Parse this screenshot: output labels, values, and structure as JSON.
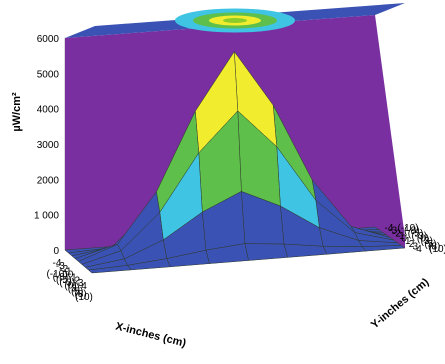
{
  "chart_data": {
    "type": "surface3d",
    "title": "",
    "zlabel": "µW/cm²",
    "xlabel": "X-inches (cm)",
    "ylabel": "Y-inches (cm)",
    "zlim": [
      0,
      6000
    ],
    "z_ticks": [
      "6000",
      "5000",
      "4000",
      "3000",
      "2000",
      "1 000",
      "0"
    ],
    "x_ticks": [
      {
        "in": "-4",
        "cm": "(-10)"
      },
      {
        "in": "-3",
        "cm": "(-8)"
      },
      {
        "in": "-2",
        "cm": "(-5)"
      },
      {
        "in": "-1",
        "cm": "(-3)"
      },
      {
        "in": "0",
        "cm": "(0)"
      },
      {
        "in": "1",
        "cm": "(3)"
      },
      {
        "in": "2",
        "cm": "(5)"
      },
      {
        "in": "3",
        "cm": "(8)"
      },
      {
        "in": "4",
        "cm": "(10)"
      }
    ],
    "y_ticks": [
      {
        "in": "-4",
        "cm": "(-10)"
      },
      {
        "in": "-3",
        "cm": "(-8)"
      },
      {
        "in": "-2",
        "cm": "(-5)"
      },
      {
        "in": "-1",
        "cm": "(-3)"
      },
      {
        "in": "0",
        "cm": "(0)"
      },
      {
        "in": "1",
        "cm": "(3)"
      },
      {
        "in": "2",
        "cm": "(5)"
      },
      {
        "in": "3",
        "cm": "(8)"
      },
      {
        "in": "4",
        "cm": "(10)"
      }
    ],
    "x_values_in": [
      -4,
      -3,
      -2,
      -1,
      0,
      1,
      2,
      3,
      4
    ],
    "y_values_in": [
      -4,
      -3,
      -2,
      -1,
      0,
      1,
      2,
      3,
      4
    ],
    "peak_value": 5600,
    "surface_z": [
      [
        0,
        0,
        0,
        0,
        0,
        0,
        0,
        0,
        0
      ],
      [
        0,
        50,
        150,
        300,
        400,
        300,
        150,
        50,
        0
      ],
      [
        0,
        150,
        600,
        1300,
        1800,
        1300,
        600,
        150,
        0
      ],
      [
        0,
        300,
        1300,
        2900,
        4000,
        2900,
        1300,
        300,
        0
      ],
      [
        0,
        400,
        1800,
        4000,
        5600,
        4000,
        1800,
        400,
        0
      ],
      [
        0,
        300,
        1300,
        2900,
        4000,
        2900,
        1300,
        300,
        0
      ],
      [
        0,
        150,
        600,
        1300,
        1800,
        1300,
        600,
        150,
        0
      ],
      [
        0,
        50,
        150,
        300,
        400,
        300,
        150,
        50,
        0
      ],
      [
        0,
        0,
        0,
        0,
        0,
        0,
        0,
        0,
        0
      ]
    ],
    "color_bands": [
      {
        "from": 0,
        "to": 1000,
        "color": "#3b52b5"
      },
      {
        "from": 1000,
        "to": 2000,
        "color": "#3fc5e3"
      },
      {
        "from": 2000,
        "to": 3000,
        "color": "#5ec04b"
      },
      {
        "from": 3000,
        "to": 4000,
        "color": "#8ccc2a"
      },
      {
        "from": 4000,
        "to": 6000,
        "color": "#f2ec2e"
      }
    ],
    "colors": {
      "left_wall": "#c4c4c4",
      "right_wall": "#7a2fa0",
      "top_face": "#3b52b5"
    },
    "grid": true
  }
}
